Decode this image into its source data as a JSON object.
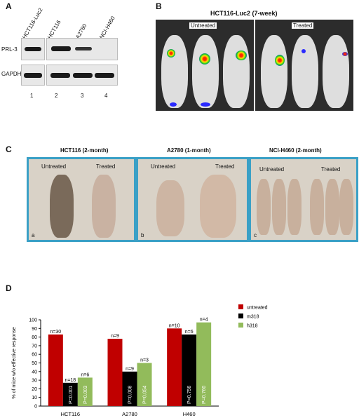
{
  "panelA": {
    "label": "A",
    "lanes": [
      "HCT116-Luc2",
      "HCT116",
      "A2780",
      "NCI-H460"
    ],
    "rows": [
      "PRL-3",
      "GAPDH"
    ],
    "lane_numbers": [
      "1",
      "2",
      "3",
      "4"
    ]
  },
  "panelB": {
    "label": "B",
    "title": "HCT116-Luc2 (7-week)",
    "untreated": "Untreated",
    "treated": "Treated"
  },
  "panelC": {
    "label": "C",
    "titles": [
      "HCT116 (2-month)",
      "A2780 (1-month)",
      "NCI-H460 (2-month)"
    ],
    "untreated": "Untreated",
    "treated": "Treated",
    "sublabels": [
      "a",
      "b",
      "c"
    ]
  },
  "panelD": {
    "label": "D",
    "colors": {
      "untreated": "#c00000",
      "m318": "#000000",
      "h318": "#92bb5b"
    },
    "chart_data": {
      "type": "bar",
      "ylabel": "% of mice w/o effective response",
      "ylim": [
        0,
        100
      ],
      "yticks": [
        "0",
        "10",
        "20",
        "30",
        "40",
        "50",
        "60",
        "70",
        "80",
        "90",
        "100"
      ],
      "categories": [
        "HCT116",
        "A2780",
        "H460"
      ],
      "series": [
        {
          "name": "untreated",
          "values": [
            83,
            78,
            90
          ],
          "n_labels": [
            "n=30",
            "n=9",
            "n=10"
          ],
          "p_labels": [
            "",
            "",
            ""
          ]
        },
        {
          "name": "m318",
          "values": [
            27,
            40,
            83
          ],
          "n_labels": [
            "n=18",
            "n=9",
            "n=6"
          ],
          "p_labels": [
            "P=0.001",
            "P=0.008",
            "P=0.756"
          ]
        },
        {
          "name": "h318",
          "values": [
            33,
            50,
            97
          ],
          "n_labels": [
            "n=6",
            "n=3",
            "n=4"
          ],
          "p_labels": [
            "P=0.003",
            "P=0.054",
            "P=0.760"
          ]
        }
      ],
      "legend": [
        "untreated",
        "m318",
        "h318"
      ],
      "legend_position": "top-right"
    }
  }
}
